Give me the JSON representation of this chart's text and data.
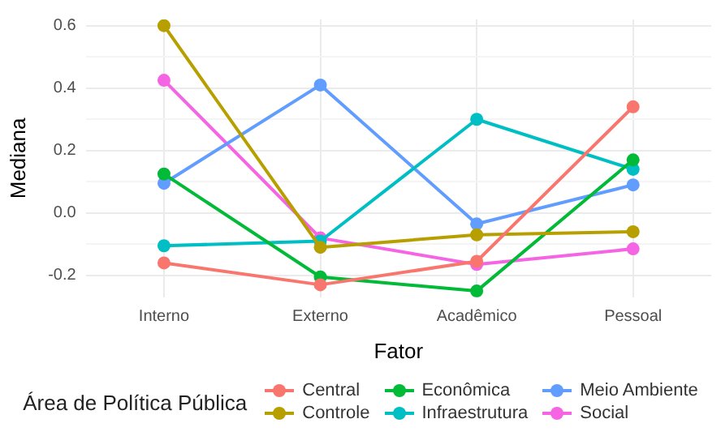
{
  "chart_data": {
    "type": "line",
    "xlabel": "Fator",
    "ylabel": "Mediana",
    "legend_title": "Área de Política Pública",
    "categories": [
      "Interno",
      "Externo",
      "Acadêmico",
      "Pessoal"
    ],
    "series": [
      {
        "name": "Central",
        "color": "#f8766d",
        "values": [
          -0.16,
          -0.23,
          -0.155,
          0.34
        ]
      },
      {
        "name": "Controle",
        "color": "#b79f00",
        "values": [
          0.6,
          -0.11,
          -0.07,
          -0.06
        ]
      },
      {
        "name": "Econômica",
        "color": "#00ba38",
        "values": [
          0.125,
          -0.205,
          -0.25,
          0.17
        ]
      },
      {
        "name": "Infraestrutura",
        "color": "#00bfc4",
        "values": [
          -0.105,
          -0.09,
          0.3,
          0.14
        ]
      },
      {
        "name": "Meio Ambiente",
        "color": "#619cff",
        "values": [
          0.095,
          0.41,
          -0.035,
          0.09
        ]
      },
      {
        "name": "Social",
        "color": "#f564e3",
        "values": [
          0.425,
          -0.08,
          -0.165,
          -0.115
        ]
      }
    ],
    "ylim": [
      -0.27,
      0.62
    ],
    "yticks": [
      {
        "value": -0.2,
        "label": "-0.2"
      },
      {
        "value": 0,
        "label": "0.0"
      },
      {
        "value": 0.2,
        "label": "0.2"
      },
      {
        "value": 0.4,
        "label": "0.4"
      },
      {
        "value": 0.6,
        "label": "0.6"
      }
    ],
    "grid": true,
    "legend": "bottom",
    "marker": "circle",
    "line_style": "solid"
  }
}
